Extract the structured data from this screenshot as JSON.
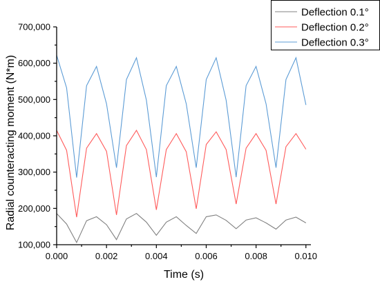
{
  "chart_data": {
    "type": "line",
    "title": "",
    "xlabel": "Time (s)",
    "ylabel": "Radial counteracting moment (N*m)",
    "xlim": [
      0,
      0.0102
    ],
    "ylim": [
      100000,
      700000
    ],
    "x_ticks": [
      0,
      0.002,
      0.004,
      0.006,
      0.008,
      0.01
    ],
    "x_tick_labels": [
      "0.000",
      "0.002",
      "0.004",
      "0.006",
      "0.008",
      "0.010"
    ],
    "y_ticks": [
      100000,
      200000,
      300000,
      400000,
      500000,
      600000,
      700000
    ],
    "y_tick_labels": [
      "100,000",
      "200,000",
      "300,000",
      "400,000",
      "500,000",
      "600,000",
      "700,000"
    ],
    "grid": false,
    "legend_position": "top-right",
    "x": [
      0,
      0.0004,
      0.0008,
      0.0012,
      0.0016,
      0.002,
      0.0024,
      0.0028,
      0.0032,
      0.0036,
      0.004,
      0.0044,
      0.0048,
      0.0052,
      0.0056,
      0.006,
      0.0064,
      0.0068,
      0.0072,
      0.0076,
      0.008,
      0.0084,
      0.0088,
      0.0092,
      0.0096,
      0.01
    ],
    "series": [
      {
        "name": "Deflection 0.1°",
        "color": "#808080",
        "values": [
          186000,
          157000,
          106000,
          166000,
          177000,
          155000,
          114000,
          171000,
          186000,
          162000,
          126000,
          162000,
          177000,
          153000,
          131000,
          177000,
          182000,
          167000,
          144000,
          168000,
          174000,
          160000,
          143000,
          168000,
          176000,
          160000
        ]
      },
      {
        "name": "Deflection 0.2°",
        "color": "#ff5a5a",
        "values": [
          415000,
          360000,
          176000,
          366000,
          406000,
          357000,
          182000,
          373000,
          415000,
          362000,
          196000,
          362000,
          406000,
          356000,
          199000,
          376000,
          411000,
          362000,
          212000,
          366000,
          406000,
          360000,
          212000,
          370000,
          406000,
          363000
        ]
      },
      {
        "name": "Deflection 0.3°",
        "color": "#5b9bd5",
        "values": [
          622000,
          532000,
          285000,
          538000,
          591000,
          488000,
          312000,
          555000,
          615000,
          498000,
          286000,
          538000,
          591000,
          488000,
          312000,
          555000,
          615000,
          498000,
          286000,
          538000,
          591000,
          488000,
          312000,
          555000,
          615000,
          485000
        ]
      }
    ]
  }
}
